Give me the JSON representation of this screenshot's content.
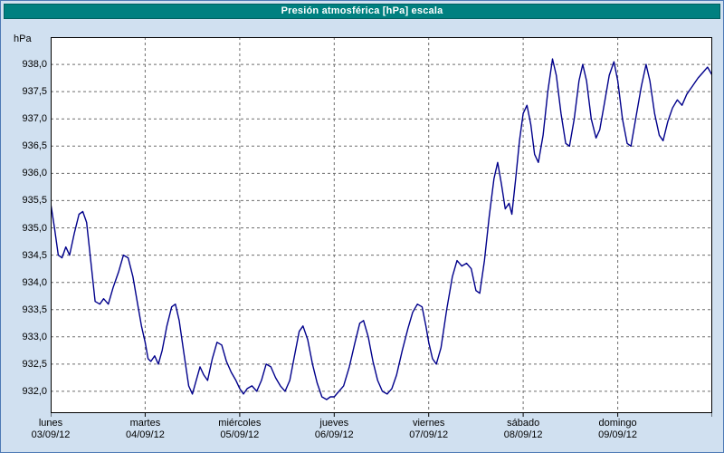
{
  "window": {
    "title": "Presión atmosférica [hPa] escala"
  },
  "colors": {
    "window_bg": "#d0e0f0",
    "window_border": "#4d7ab5",
    "titlebar_bg": "#008080",
    "titlebar_border": "#005f5f",
    "titlebar_text": "#ffffff",
    "plot_bg": "#ffffff",
    "frame_color": "#000000",
    "grid_color": "#6e6e6e",
    "series_color": "#00008b"
  },
  "chart_data": {
    "type": "line",
    "title": "Presión atmosférica [hPa] escala",
    "ylabel": "hPa",
    "xlabel": "",
    "ylim": [
      931.6,
      938.5
    ],
    "xlim": [
      0,
      7
    ],
    "grid": true,
    "legend": false,
    "decimal_separator": ",",
    "yticks": [
      932.0,
      932.5,
      933.0,
      933.5,
      934.0,
      934.5,
      935.0,
      935.5,
      936.0,
      936.5,
      937.0,
      937.5,
      938.0
    ],
    "ytick_labels": [
      "932,0",
      "932,5",
      "933,0",
      "933,5",
      "934,0",
      "934,5",
      "935,0",
      "935,5",
      "936,0",
      "936,5",
      "937,0",
      "937,5",
      "938,0"
    ],
    "days": [
      {
        "name": "lunes",
        "date": "03/09/12"
      },
      {
        "name": "martes",
        "date": "04/09/12"
      },
      {
        "name": "miércoles",
        "date": "05/09/12"
      },
      {
        "name": "jueves",
        "date": "06/09/12"
      },
      {
        "name": "viernes",
        "date": "07/09/12"
      },
      {
        "name": "sábado",
        "date": "08/09/12"
      },
      {
        "name": "domingo",
        "date": "09/09/12"
      }
    ],
    "series_name": "Presión atmosférica",
    "unit": "hPa",
    "points": [
      [
        0.0,
        935.45
      ],
      [
        0.04,
        935.0
      ],
      [
        0.08,
        934.5
      ],
      [
        0.12,
        934.45
      ],
      [
        0.16,
        934.65
      ],
      [
        0.2,
        934.5
      ],
      [
        0.25,
        934.9
      ],
      [
        0.3,
        935.25
      ],
      [
        0.34,
        935.3
      ],
      [
        0.38,
        935.1
      ],
      [
        0.43,
        934.3
      ],
      [
        0.47,
        933.65
      ],
      [
        0.52,
        933.6
      ],
      [
        0.56,
        933.7
      ],
      [
        0.61,
        933.6
      ],
      [
        0.66,
        933.9
      ],
      [
        0.72,
        934.2
      ],
      [
        0.77,
        934.5
      ],
      [
        0.82,
        934.45
      ],
      [
        0.87,
        934.1
      ],
      [
        0.92,
        933.6
      ],
      [
        0.96,
        933.2
      ],
      [
        1.0,
        932.9
      ],
      [
        1.03,
        932.6
      ],
      [
        1.06,
        932.55
      ],
      [
        1.1,
        932.65
      ],
      [
        1.14,
        932.5
      ],
      [
        1.18,
        932.75
      ],
      [
        1.23,
        933.2
      ],
      [
        1.28,
        933.55
      ],
      [
        1.32,
        933.6
      ],
      [
        1.36,
        933.3
      ],
      [
        1.41,
        932.7
      ],
      [
        1.46,
        932.1
      ],
      [
        1.5,
        931.95
      ],
      [
        1.54,
        932.2
      ],
      [
        1.58,
        932.45
      ],
      [
        1.62,
        932.3
      ],
      [
        1.66,
        932.2
      ],
      [
        1.71,
        932.6
      ],
      [
        1.76,
        932.9
      ],
      [
        1.81,
        932.85
      ],
      [
        1.86,
        932.55
      ],
      [
        1.91,
        932.35
      ],
      [
        1.96,
        932.2
      ],
      [
        2.0,
        932.05
      ],
      [
        2.04,
        931.95
      ],
      [
        2.08,
        932.05
      ],
      [
        2.13,
        932.1
      ],
      [
        2.18,
        932.0
      ],
      [
        2.23,
        932.2
      ],
      [
        2.28,
        932.5
      ],
      [
        2.33,
        932.45
      ],
      [
        2.38,
        932.25
      ],
      [
        2.43,
        932.1
      ],
      [
        2.48,
        932.0
      ],
      [
        2.53,
        932.2
      ],
      [
        2.58,
        932.65
      ],
      [
        2.63,
        933.1
      ],
      [
        2.67,
        933.2
      ],
      [
        2.72,
        932.95
      ],
      [
        2.77,
        932.5
      ],
      [
        2.82,
        932.15
      ],
      [
        2.87,
        931.9
      ],
      [
        2.92,
        931.85
      ],
      [
        2.96,
        931.9
      ],
      [
        3.0,
        931.9
      ],
      [
        3.05,
        932.0
      ],
      [
        3.1,
        932.1
      ],
      [
        3.16,
        932.45
      ],
      [
        3.22,
        932.9
      ],
      [
        3.27,
        933.25
      ],
      [
        3.31,
        933.3
      ],
      [
        3.36,
        933.0
      ],
      [
        3.41,
        932.55
      ],
      [
        3.46,
        932.2
      ],
      [
        3.51,
        932.0
      ],
      [
        3.56,
        931.95
      ],
      [
        3.61,
        932.05
      ],
      [
        3.66,
        932.3
      ],
      [
        3.72,
        932.75
      ],
      [
        3.78,
        933.15
      ],
      [
        3.83,
        933.45
      ],
      [
        3.88,
        933.6
      ],
      [
        3.93,
        933.55
      ],
      [
        3.97,
        933.2
      ],
      [
        4.0,
        932.9
      ],
      [
        4.04,
        932.6
      ],
      [
        4.08,
        932.5
      ],
      [
        4.13,
        932.8
      ],
      [
        4.19,
        933.5
      ],
      [
        4.25,
        934.1
      ],
      [
        4.3,
        934.4
      ],
      [
        4.35,
        934.3
      ],
      [
        4.4,
        934.35
      ],
      [
        4.45,
        934.25
      ],
      [
        4.5,
        933.85
      ],
      [
        4.54,
        933.8
      ],
      [
        4.59,
        934.4
      ],
      [
        4.64,
        935.2
      ],
      [
        4.69,
        935.9
      ],
      [
        4.73,
        936.2
      ],
      [
        4.77,
        935.8
      ],
      [
        4.81,
        935.35
      ],
      [
        4.85,
        935.45
      ],
      [
        4.88,
        935.25
      ],
      [
        4.92,
        935.9
      ],
      [
        4.96,
        936.6
      ],
      [
        5.0,
        937.1
      ],
      [
        5.04,
        937.25
      ],
      [
        5.08,
        936.9
      ],
      [
        5.12,
        936.35
      ],
      [
        5.16,
        936.2
      ],
      [
        5.21,
        936.7
      ],
      [
        5.26,
        937.5
      ],
      [
        5.31,
        938.1
      ],
      [
        5.35,
        937.8
      ],
      [
        5.4,
        937.1
      ],
      [
        5.45,
        936.55
      ],
      [
        5.49,
        936.5
      ],
      [
        5.54,
        937.0
      ],
      [
        5.59,
        937.7
      ],
      [
        5.63,
        938.0
      ],
      [
        5.67,
        937.7
      ],
      [
        5.72,
        937.0
      ],
      [
        5.77,
        936.65
      ],
      [
        5.81,
        936.8
      ],
      [
        5.86,
        937.3
      ],
      [
        5.91,
        937.8
      ],
      [
        5.96,
        938.05
      ],
      [
        6.0,
        937.7
      ],
      [
        6.05,
        937.0
      ],
      [
        6.1,
        936.55
      ],
      [
        6.14,
        936.5
      ],
      [
        6.19,
        937.0
      ],
      [
        6.25,
        937.6
      ],
      [
        6.3,
        938.0
      ],
      [
        6.34,
        937.7
      ],
      [
        6.39,
        937.1
      ],
      [
        6.44,
        936.7
      ],
      [
        6.48,
        936.6
      ],
      [
        6.53,
        936.95
      ],
      [
        6.58,
        937.2
      ],
      [
        6.63,
        937.35
      ],
      [
        6.68,
        937.25
      ],
      [
        6.73,
        937.45
      ],
      [
        6.79,
        937.6
      ],
      [
        6.85,
        937.75
      ],
      [
        6.9,
        937.85
      ],
      [
        6.95,
        937.95
      ],
      [
        7.0,
        937.8
      ]
    ]
  }
}
